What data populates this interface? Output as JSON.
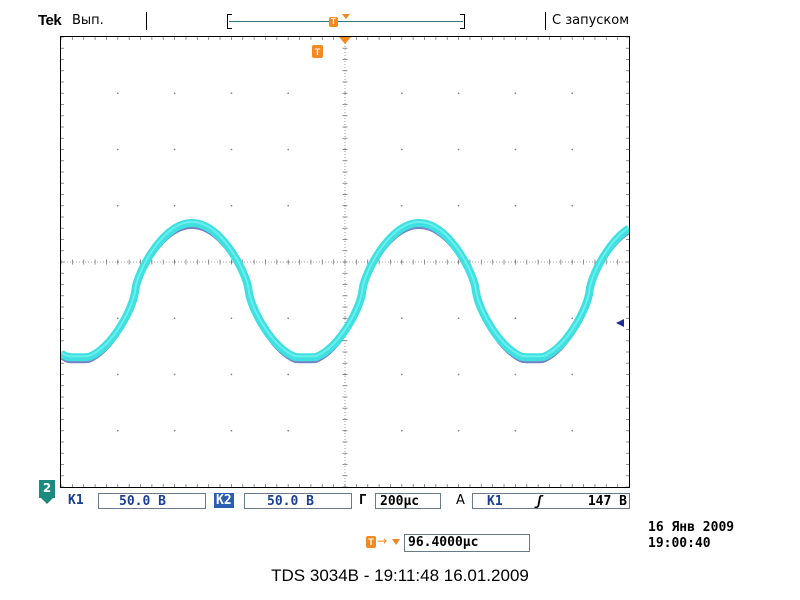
{
  "header": {
    "brand": "Tek",
    "run_state": "Вып.",
    "trigger_mode": "С запуском"
  },
  "screen": {
    "divisions_x": 10,
    "divisions_y": 8,
    "trigger_marker_label": "T",
    "waveform_color": "#3fe0e0",
    "ref_color": "#1b2f9c",
    "trigger_level_arrow_color": "#1b2f9c"
  },
  "readout": {
    "ch2_tag": "2",
    "ch1_label": "К1",
    "ch1_scale": "50.0 В",
    "ch2_label": "К2",
    "ch2_scale": "50.0 В",
    "timebase_label": "Г",
    "timebase_value": "200µс",
    "trigger_label": "А",
    "trigger_source": "К1",
    "trigger_slope": "ʃ",
    "trigger_level": "147 В"
  },
  "datetime": {
    "date": "16 Янв 2009",
    "time": "19:00:40"
  },
  "trigger_delay": {
    "icon": "T",
    "arrow": "→",
    "value": "96.4000µс"
  },
  "caption": "TDS 3034B - 19:11:48   16.01.2009",
  "icons": {
    "trigger_marker": "trigger-marker-icon",
    "trigger_level": "trigger-level-arrow-icon",
    "channel_tag": "channel-2-tag-icon"
  }
}
